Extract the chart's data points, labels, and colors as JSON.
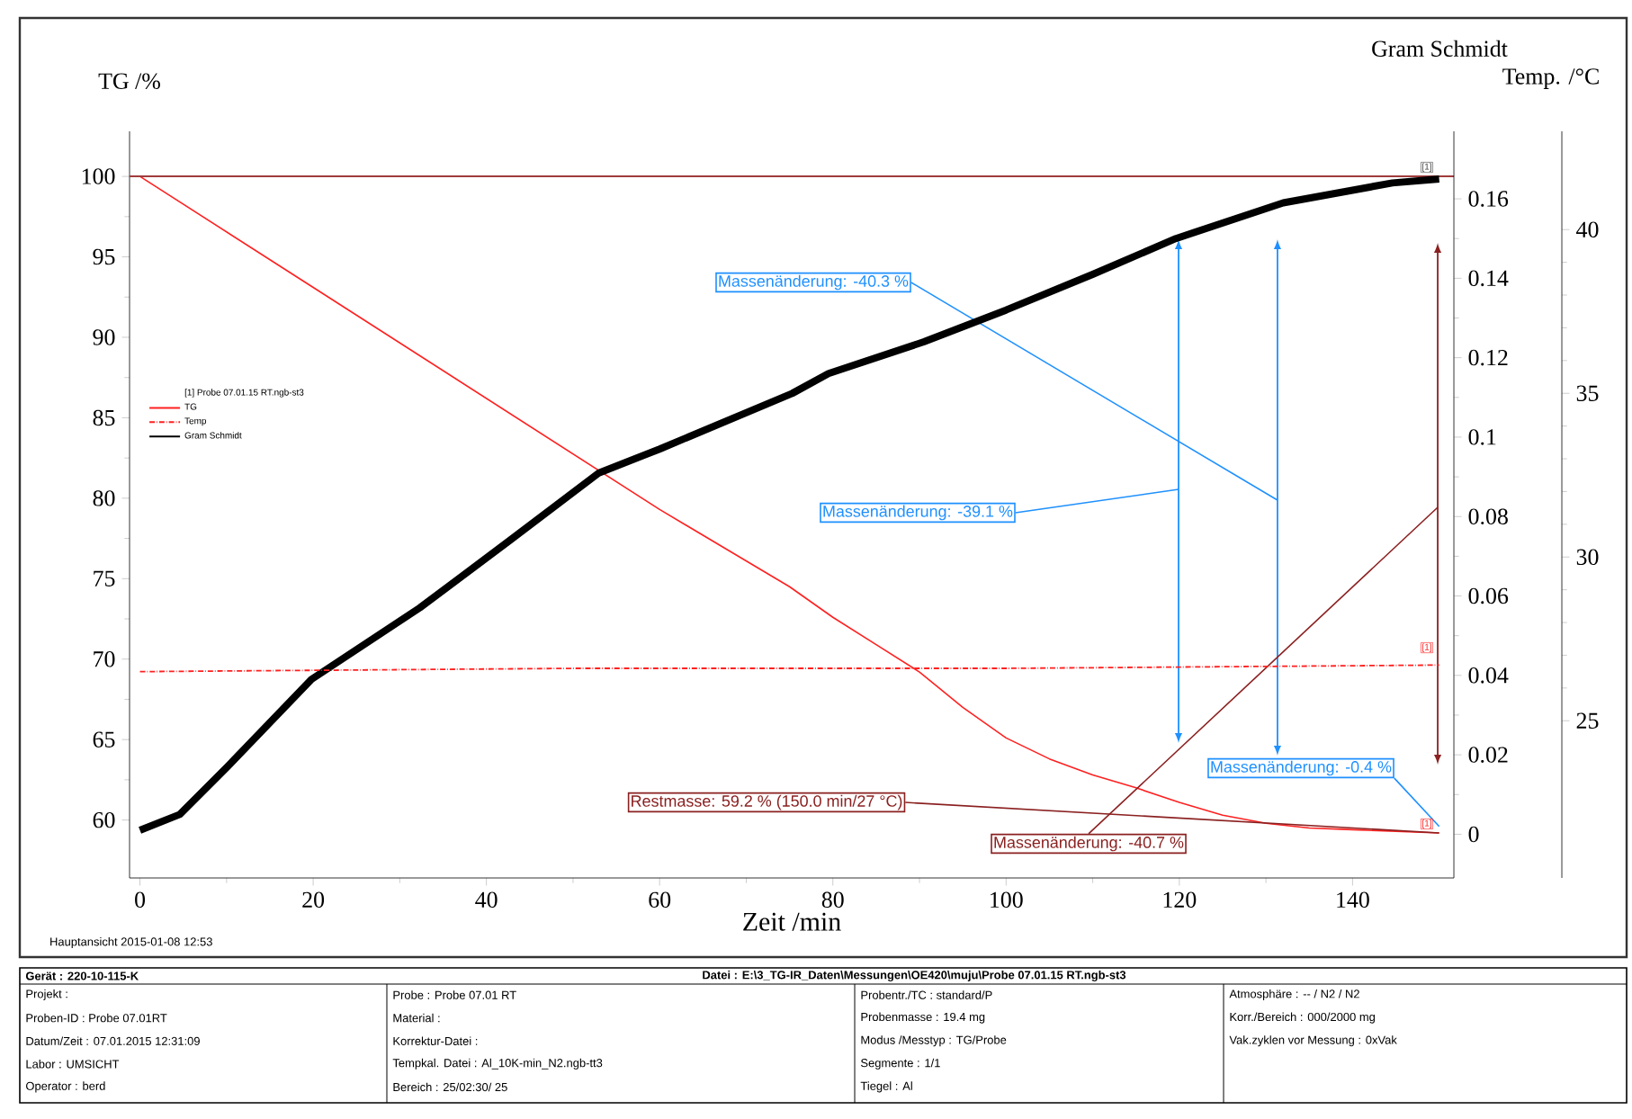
{
  "chart_data": {
    "type": "line",
    "xlabel": "Zeit /min",
    "ylabel": "TG /%",
    "y2label": "Gram Schmidt",
    "y3label": "Temp. /°C",
    "legend_title": "[1] Probe 07.01.15 RT.ngb-st3",
    "legend": "left",
    "xlim": [
      -1.2,
      151.7
    ],
    "xticks": [
      0,
      20,
      40,
      60,
      80,
      100,
      120,
      140
    ],
    "ylim": [
      56.4,
      102.8
    ],
    "yticks": [
      60,
      65,
      70,
      75,
      80,
      85,
      90,
      95,
      100
    ],
    "y2lim": [
      -0.011,
      0.177
    ],
    "y2ticks": [
      0,
      0.02,
      0.04,
      0.06,
      0.08,
      0.1,
      0.12,
      0.14,
      0.16
    ],
    "y3lim": [
      20.2,
      43.0
    ],
    "y3ticks": [
      25,
      30,
      35,
      40
    ],
    "series": [
      {
        "name": "TG",
        "color": "#ff2020",
        "line_style": "solid",
        "x": [
          0,
          20,
          40,
          60,
          75,
          80,
          85,
          90,
          95,
          100,
          105,
          110,
          115,
          120,
          125,
          130,
          135,
          140,
          150
        ],
        "values": [
          100,
          93.1,
          86.2,
          79.3,
          74.5,
          72.6,
          70.9,
          69.2,
          67.0,
          65.1,
          63.8,
          62.8,
          62.0,
          61.1,
          60.3,
          59.8,
          59.5,
          59.4,
          59.2
        ]
      },
      {
        "name": "Temp",
        "color": "#ff2020",
        "line_style": "dotted",
        "axis": "y3",
        "x": [
          0,
          50,
          100,
          150
        ],
        "values": [
          26.5,
          26.6,
          26.6,
          26.7
        ]
      },
      {
        "name": "Gram Schmidt",
        "color": "#000000",
        "line_style": "solid",
        "axis": "y2",
        "x": [
          0,
          4.6,
          10.1,
          19.8,
          32.3,
          42.7,
          53,
          60,
          75.3,
          79.5,
          90.5,
          100,
          110,
          119.6,
          132,
          144.6,
          150
        ],
        "values": [
          0.001,
          0.005,
          0.017,
          0.039,
          0.057,
          0.074,
          0.091,
          0.097,
          0.111,
          0.116,
          0.124,
          0.132,
          0.141,
          0.15,
          0.159,
          0.164,
          0.165
        ]
      }
    ],
    "ref_lines": [
      {
        "axis": "y",
        "value": 100,
        "color": "#a03c3c"
      }
    ],
    "annotations": [
      "Massenänderung: -40.3 %",
      "Massenänderung: -39.1 %",
      {
        "text": "Massenänderung: -0.4 %",
        "x": 150,
        "y": 59.6
      },
      "Massenänderung: -40.7 %",
      {
        "text": "Restmasse: 59.2 % (150.0 min/27 °C)",
        "x": 150,
        "y": 59.2
      },
      "[1]",
      "[1]",
      "[1]",
      "Hauptansicht   2015-01-08 12:53",
      "Gerät :  220-10-115-K",
      "Datei :  E:\\3_TG-IR_Daten\\Messungen\\OE420\\muju\\Probe 07.01.15 RT.ngb-st3",
      "Projekt :",
      "Proben-ID :  Probe 07.01RT",
      "Datum/Zeit :  07.01.2015 12:31:09",
      "Labor :  UMSICHT",
      "Operator :  berd",
      "Probe :  Probe 07.01 RT",
      "Material :",
      "Korrektur-Datei :",
      "Tempkal. Datei :  Al_10K-min_N2.ngb-tt3",
      "Bereich :  25/02:30/ 25",
      "Probentr./TC :  standard/P",
      "Probenmasse :  19.4 mg",
      "Modus /Messtyp :  TG/Probe",
      "Segmente :  1/1",
      "Tiegel :  Al",
      "Atmosphäre :  -- / N2 / N2",
      "Korr./Bereich :  000/2000 mg",
      "Vak.zyklen vor Messung :  0xVak"
    ]
  }
}
